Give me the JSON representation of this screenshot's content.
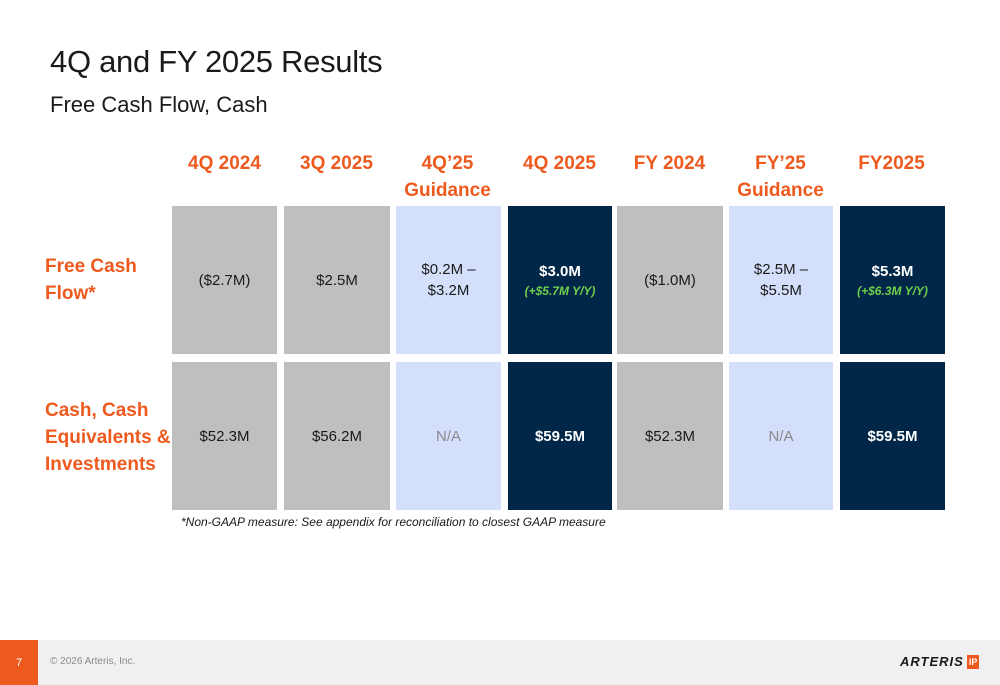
{
  "header": {
    "title": "4Q and FY 2025 Results",
    "subtitle": "Free Cash Flow, Cash"
  },
  "columns": [
    "4Q 2024",
    "3Q 2025",
    "4Q’25 Guidance",
    "4Q 2025",
    "FY 2024",
    "FY’25 Guidance",
    "FY2025"
  ],
  "rows": [
    {
      "label": "Free Cash Flow*",
      "cells": [
        "($2.7M)",
        "$2.5M",
        "$0.2M – $3.2M",
        "$3.0M",
        "($1.0M)",
        "$2.5M – $5.5M",
        "$5.3M"
      ],
      "deltas": {
        "q4_2025": "(+$5.7M Y/Y)",
        "fy2025": "(+$6.3M Y/Y)"
      }
    },
    {
      "label": "Cash, Cash Equivalents & Investments",
      "cells": [
        "$52.3M",
        "$56.2M",
        "N/A",
        "$59.5M",
        "$52.3M",
        "N/A",
        "$59.5M"
      ]
    }
  ],
  "footnote": "*Non-GAAP measure: See appendix for reconciliation to closest GAAP measure",
  "footer": {
    "page_number": "7",
    "copyright": "© 2026 Arteris, Inc.",
    "logo_text": "ARTERIS",
    "logo_badge": "IP"
  },
  "colors": {
    "accent": "#ee5a1e",
    "navy": "#002747",
    "gray": "#bfbfbf",
    "light_blue": "#d4e0fb",
    "delta_green": "#6fcf4d"
  }
}
